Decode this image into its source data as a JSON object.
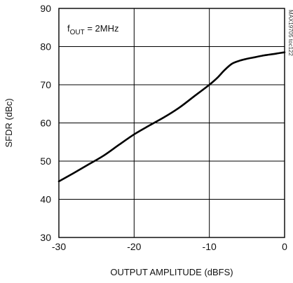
{
  "chart_data": {
    "type": "line",
    "title": "",
    "xlabel": "OUTPUT AMPLITUDE (dBFS)",
    "ylabel": "SFDR (dBc)",
    "xlim": [
      -30,
      0
    ],
    "ylim": [
      30,
      90
    ],
    "xticks": [
      -30,
      -20,
      -10,
      0
    ],
    "yticks": [
      30,
      40,
      50,
      60,
      70,
      80,
      90
    ],
    "grid": true,
    "series": [
      {
        "x": [
          -30,
          -28,
          -26,
          -24,
          -22,
          -20,
          -18,
          -16,
          -14,
          -12,
          -10,
          -9,
          -8,
          -7,
          -6,
          -5,
          -4,
          -3,
          -2,
          -1,
          0
        ],
        "y": [
          44.7,
          46.9,
          49.2,
          51.5,
          54.3,
          57.0,
          59.3,
          61.5,
          64.0,
          67.0,
          70.0,
          71.7,
          73.8,
          75.5,
          76.3,
          76.8,
          77.2,
          77.6,
          77.9,
          78.2,
          78.5
        ]
      }
    ],
    "annotations": [
      {
        "prefix": "f",
        "sub": "OUT",
        "suffix": " = 2MHz"
      }
    ],
    "side_label": "MAX19705 toc122",
    "line_color": "#000000"
  }
}
